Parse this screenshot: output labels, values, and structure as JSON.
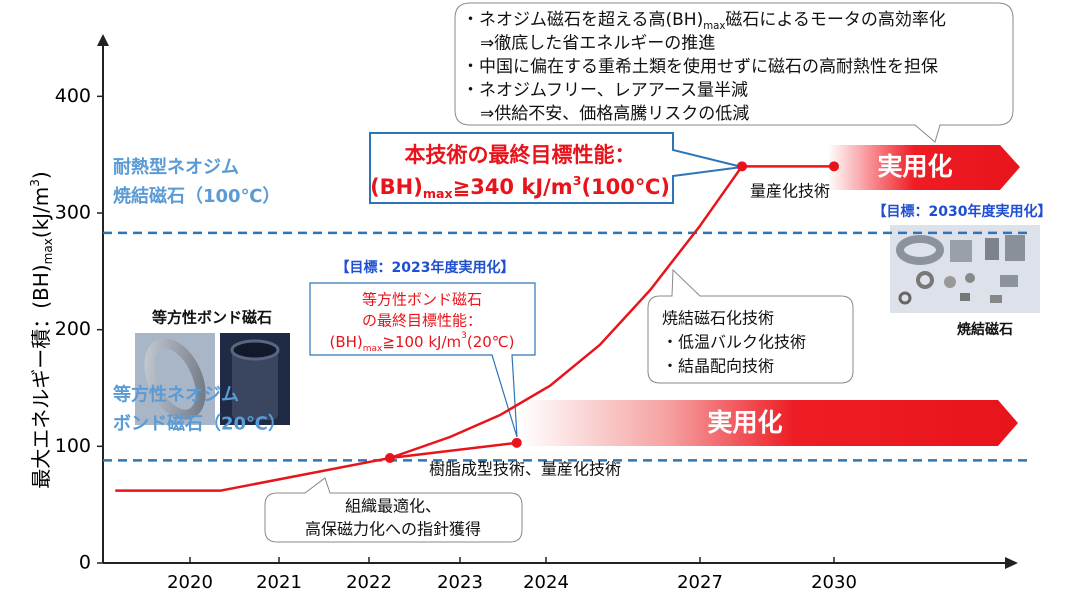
{
  "chart_data": {
    "type": "line",
    "ylabel": [
      {
        "text": "最大エネルギー積：(BH)"
      },
      {
        "text": "max",
        "style": "sub"
      },
      {
        "text": "(kJ/m"
      },
      {
        "text": "3",
        "style": "sup"
      },
      {
        "text": ")"
      }
    ],
    "xticks": [
      2020,
      2021,
      2022,
      2023,
      2024,
      2027,
      2030
    ],
    "ylim": [
      0,
      450
    ],
    "yticks": [
      0,
      100,
      200,
      300,
      400
    ],
    "series": [
      {
        "color": "#e8141c",
        "x": [
          2019.16,
          2020.34,
          2022.23,
          2023.66
        ],
        "values": [
          62,
          62,
          90,
          103
        ],
        "markers": [
          false,
          false,
          true,
          true
        ]
      },
      {
        "color": "#e8141c",
        "x": [
          2022.23,
          2022.89,
          2023.47,
          2024.08,
          2025.05,
          2026.03,
          2027,
          2027.94,
          2030
        ],
        "values": [
          90,
          108,
          127,
          152,
          187,
          234,
          289,
          340,
          340
        ],
        "markers": [
          false,
          false,
          false,
          false,
          false,
          false,
          false,
          true,
          true
        ]
      }
    ],
    "reference_lines": [
      {
        "value": 283,
        "color": "#2e75b6",
        "label": [
          "耐熱型ネオジム",
          "焼結磁石（100℃）"
        ]
      },
      {
        "value": 88,
        "color": "#2e75b6",
        "label": [
          "等方性ネオジム",
          "ボンド磁石（20℃）"
        ]
      }
    ],
    "annotations": {
      "benefits": [
        [
          {
            "text": "・ネオジム磁石を超える高(BH)"
          },
          {
            "text": "max",
            "style": "sub"
          },
          {
            "text": "磁石によるモータの高効率化"
          }
        ],
        "⇒徹底した省エネルギーの推進",
        "・中国に偏在する重希土類を使用せずに磁石の高耐熱性を担保",
        "・ネオジムフリー、レアアース量半減",
        "⇒供給不安、価格高騰リスクの低減"
      ],
      "final_target": [
        "本技術の最終目標性能：",
        [
          {
            "text": "(BH)"
          },
          {
            "text": "max",
            "style": "sub"
          },
          {
            "text": "≧340 kJ/m"
          },
          {
            "text": "3",
            "style": "sup"
          },
          {
            "text": "(100℃)"
          }
        ]
      ],
      "mass_production": [
        "量産化技術"
      ],
      "practical_2030": [
        "実用化"
      ],
      "goal_2030": [
        "【目標：2030年度実用化】"
      ],
      "sintered_photo": [
        "焼結磁石"
      ],
      "goal_2023": [
        "【目標：2023年度実用化】"
      ],
      "bond_target": [
        "等方性ボンド磁石",
        "の最終目標性能：",
        [
          {
            "text": "(BH)"
          },
          {
            "text": "max",
            "style": "sub"
          },
          {
            "text": "≧100 kJ/m"
          },
          {
            "text": "3",
            "style": "sup"
          },
          {
            "text": "(20℃)"
          }
        ]
      ],
      "bond_photo": [
        "等方性ボンド磁石"
      ],
      "sinter_tech": [
        "焼結磁石化技術",
        "・低温バルク化技術",
        "・結晶配向技術"
      ],
      "practical_2024": [
        "実用化"
      ],
      "resin_tech": [
        "樹脂成型技術、量産化技術"
      ],
      "structure": [
        "組織最適化、",
        "高保磁力化への指針獲得"
      ]
    }
  }
}
